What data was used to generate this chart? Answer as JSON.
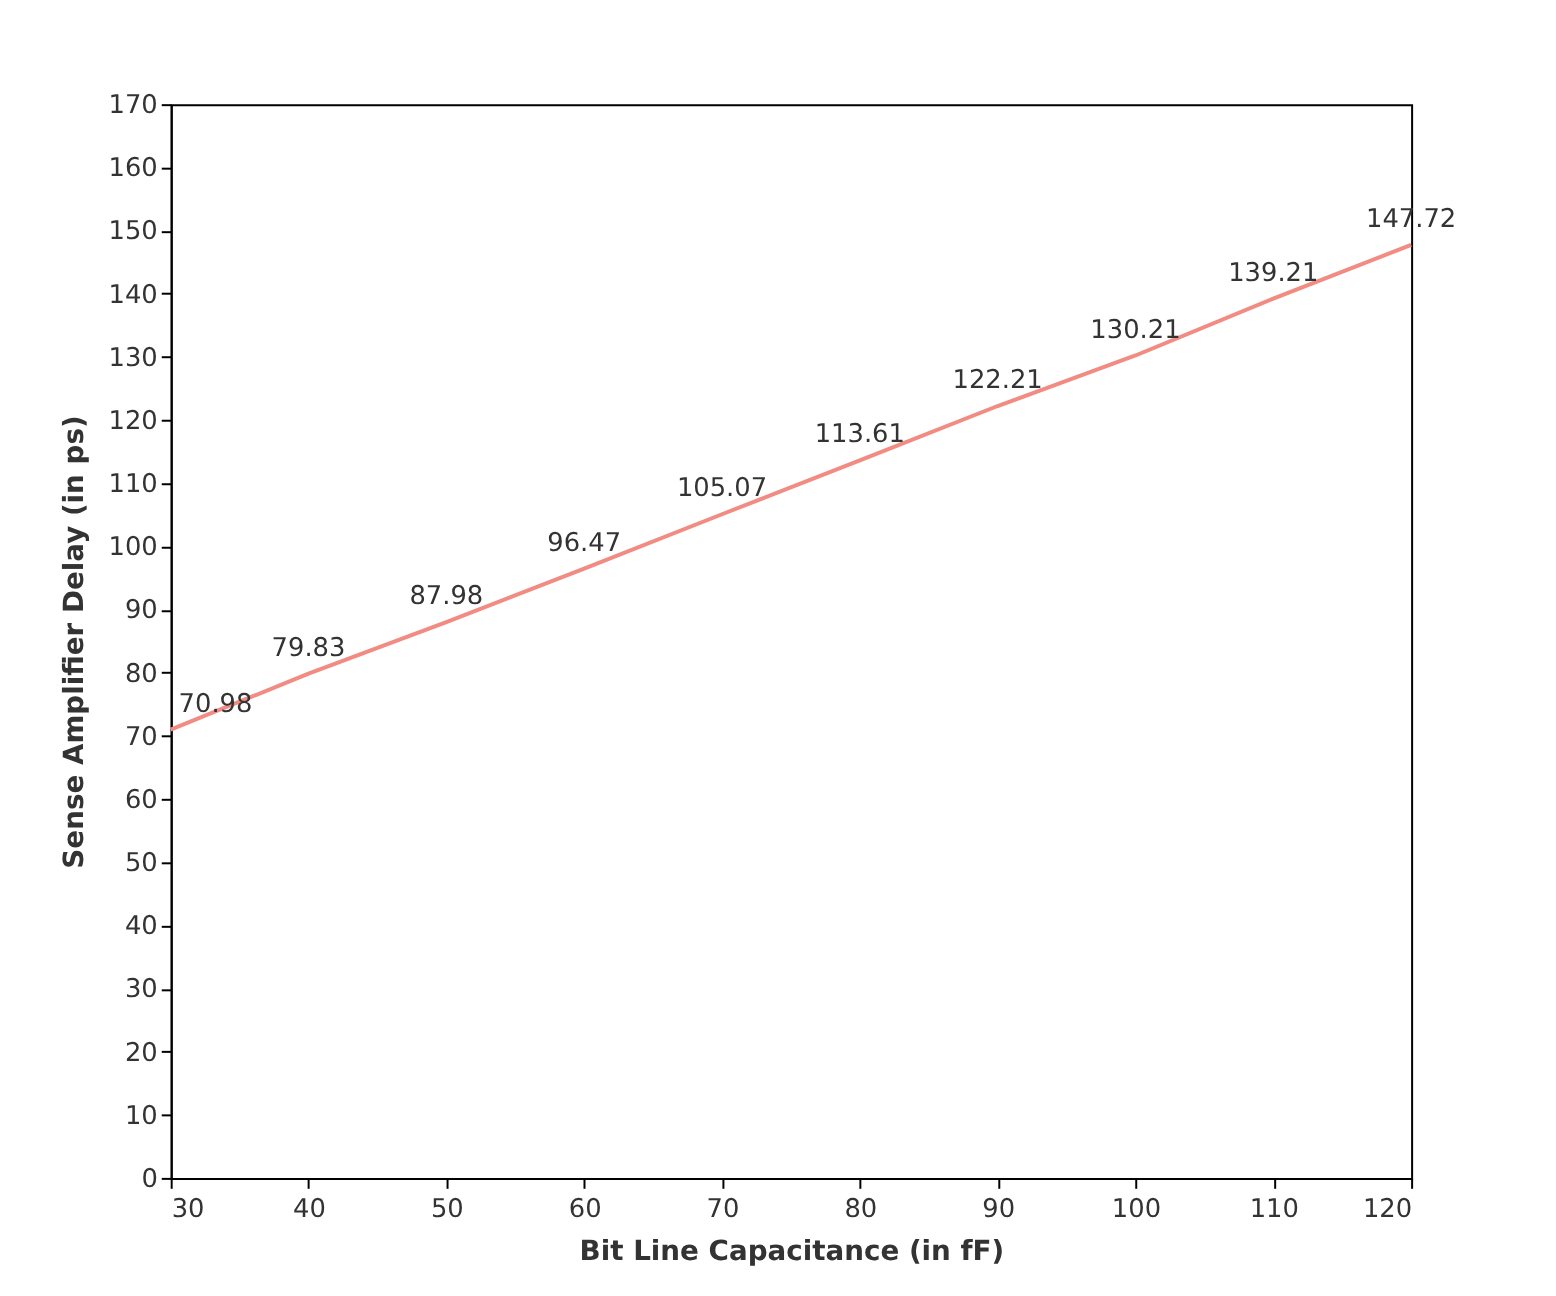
{
  "chart_data": {
    "type": "line",
    "xlabel": "Bit Line Capacitance (in fF)",
    "ylabel": "Sense Amplifier Delay (in ps)",
    "x": [
      30,
      40,
      50,
      60,
      70,
      80,
      90,
      100,
      110,
      120
    ],
    "series": [
      {
        "color": "#f28b82",
        "values": [
          70.98,
          79.83,
          87.98,
          96.47,
          105.07,
          113.61,
          122.21,
          130.21,
          139.21,
          147.72
        ]
      }
    ],
    "xlim": [
      30,
      120
    ],
    "xticks": [
      30,
      40,
      50,
      60,
      70,
      80,
      90,
      100,
      110,
      120
    ],
    "ylim": [
      0,
      170
    ],
    "yticks": [
      0,
      10,
      20,
      30,
      40,
      50,
      60,
      70,
      80,
      90,
      100,
      110,
      120,
      130,
      140,
      150,
      160,
      170
    ],
    "grid": false,
    "marker": "none",
    "line_style": "solid",
    "data_labels": true
  }
}
